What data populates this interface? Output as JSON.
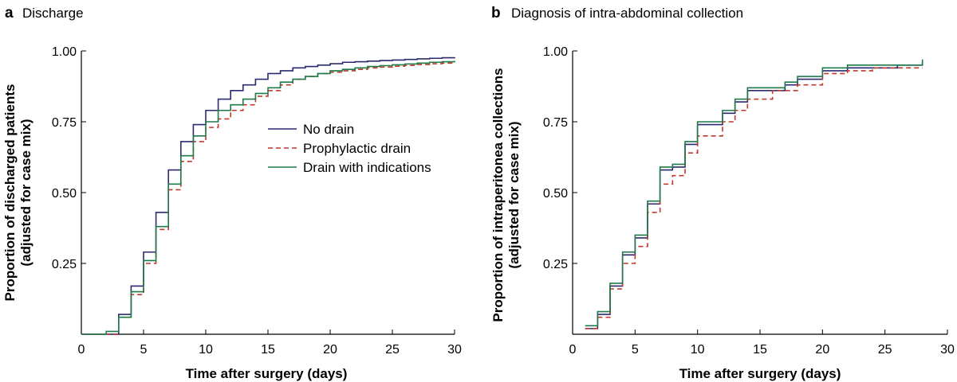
{
  "colors": {
    "no_drain": "#2b2a6e",
    "prophylactic": "#c0392b",
    "indications": "#1f7a4a"
  },
  "chart_data": [
    {
      "type": "line",
      "panel_letter": "a",
      "title": "Discharge",
      "xlabel": "Time after surgery (days)",
      "ylabel": [
        "Proportion of discharged patients",
        "(adjusted for case mix)"
      ],
      "xlim": [
        0,
        30
      ],
      "ylim": [
        0,
        1
      ],
      "x_ticks": [
        "0",
        "5",
        "10",
        "15",
        "20",
        "25",
        "30"
      ],
      "y_ticks": [
        "0.25",
        "0.50",
        "0.75",
        "1.00"
      ],
      "step": true,
      "legend_position": "center-right",
      "series": [
        {
          "name": "No drain",
          "style": "solid",
          "color_key": "no_drain",
          "x": [
            0,
            1,
            2,
            3,
            4,
            5,
            6,
            7,
            8,
            9,
            10,
            11,
            12,
            13,
            14,
            15,
            16,
            17,
            18,
            19,
            20,
            21,
            22,
            23,
            24,
            25,
            26,
            27,
            28,
            29,
            30
          ],
          "y": [
            0,
            0,
            0,
            0.07,
            0.17,
            0.29,
            0.43,
            0.58,
            0.68,
            0.74,
            0.79,
            0.83,
            0.86,
            0.88,
            0.9,
            0.92,
            0.93,
            0.94,
            0.945,
            0.95,
            0.955,
            0.96,
            0.962,
            0.964,
            0.966,
            0.968,
            0.97,
            0.972,
            0.974,
            0.976,
            0.978
          ]
        },
        {
          "name": "Prophylactic drain",
          "style": "dashed",
          "color_key": "prophylactic",
          "x": [
            0,
            1,
            2,
            3,
            4,
            5,
            6,
            7,
            8,
            9,
            10,
            11,
            12,
            13,
            14,
            15,
            16,
            17,
            18,
            19,
            20,
            21,
            22,
            23,
            24,
            25,
            26,
            27,
            28,
            29,
            30
          ],
          "y": [
            0,
            0,
            0,
            0.06,
            0.14,
            0.25,
            0.37,
            0.51,
            0.61,
            0.68,
            0.73,
            0.76,
            0.79,
            0.81,
            0.84,
            0.86,
            0.88,
            0.9,
            0.91,
            0.92,
            0.925,
            0.93,
            0.935,
            0.94,
            0.943,
            0.946,
            0.949,
            0.952,
            0.955,
            0.957,
            0.96
          ]
        },
        {
          "name": "Drain with indications",
          "style": "solid",
          "color_key": "indications",
          "x": [
            0,
            1,
            2,
            3,
            4,
            5,
            6,
            7,
            8,
            9,
            10,
            11,
            12,
            13,
            14,
            15,
            16,
            17,
            18,
            19,
            20,
            21,
            22,
            23,
            24,
            25,
            26,
            27,
            28,
            29,
            30
          ],
          "y": [
            0,
            0,
            0.01,
            0.06,
            0.15,
            0.26,
            0.38,
            0.53,
            0.63,
            0.7,
            0.75,
            0.79,
            0.81,
            0.83,
            0.85,
            0.87,
            0.89,
            0.9,
            0.91,
            0.92,
            0.93,
            0.935,
            0.94,
            0.945,
            0.948,
            0.951,
            0.954,
            0.957,
            0.96,
            0.962,
            0.965
          ]
        }
      ]
    },
    {
      "type": "line",
      "panel_letter": "b",
      "title": "Diagnosis of intra-abdominal collection",
      "xlabel": "Time after surgery (days)",
      "ylabel": [
        "Proportion of intraperitonea collections",
        "(adjusted for case mix)"
      ],
      "xlim": [
        0,
        30
      ],
      "ylim": [
        0,
        1
      ],
      "x_ticks": [
        "0",
        "5",
        "10",
        "15",
        "20",
        "25",
        "30"
      ],
      "y_ticks": [
        "0.25",
        "0.50",
        "0.75",
        "1.00"
      ],
      "step": true,
      "series": [
        {
          "name": "No drain",
          "style": "solid",
          "color_key": "no_drain",
          "x": [
            1,
            2,
            3,
            4,
            5,
            6,
            7,
            8,
            9,
            10,
            11,
            12,
            13,
            14,
            15,
            16,
            17,
            18,
            19,
            20,
            21,
            22,
            23,
            24,
            25,
            26,
            27,
            28
          ],
          "y": [
            0.02,
            0.07,
            0.17,
            0.28,
            0.34,
            0.46,
            0.58,
            0.59,
            0.67,
            0.74,
            0.74,
            0.78,
            0.82,
            0.86,
            0.86,
            0.86,
            0.88,
            0.9,
            0.9,
            0.93,
            0.93,
            0.94,
            0.94,
            0.94,
            0.94,
            0.95,
            0.95,
            0.96
          ]
        },
        {
          "name": "Prophylactic drain",
          "style": "dashed",
          "color_key": "prophylactic",
          "x": [
            1,
            2,
            3,
            4,
            5,
            6,
            7,
            8,
            9,
            10,
            11,
            12,
            13,
            14,
            15,
            16,
            17,
            18,
            19,
            20,
            21,
            22,
            23,
            24,
            25,
            26,
            27,
            28
          ],
          "y": [
            0.02,
            0.06,
            0.16,
            0.25,
            0.31,
            0.43,
            0.53,
            0.56,
            0.64,
            0.7,
            0.7,
            0.75,
            0.79,
            0.83,
            0.83,
            0.86,
            0.86,
            0.88,
            0.88,
            0.92,
            0.92,
            0.93,
            0.93,
            0.94,
            0.94,
            0.94,
            0.94,
            0.94
          ]
        },
        {
          "name": "Drain with indications",
          "style": "solid",
          "color_key": "indications",
          "x": [
            1,
            2,
            3,
            4,
            5,
            6,
            7,
            8,
            9,
            10,
            11,
            12,
            13,
            14,
            15,
            16,
            17,
            18,
            19,
            20,
            21,
            22,
            23,
            24,
            25,
            26,
            27,
            28
          ],
          "y": [
            0.03,
            0.08,
            0.18,
            0.29,
            0.35,
            0.47,
            0.59,
            0.6,
            0.68,
            0.75,
            0.75,
            0.79,
            0.83,
            0.87,
            0.87,
            0.87,
            0.89,
            0.91,
            0.91,
            0.94,
            0.94,
            0.95,
            0.95,
            0.95,
            0.95,
            0.95,
            0.95,
            0.97
          ]
        }
      ]
    }
  ]
}
